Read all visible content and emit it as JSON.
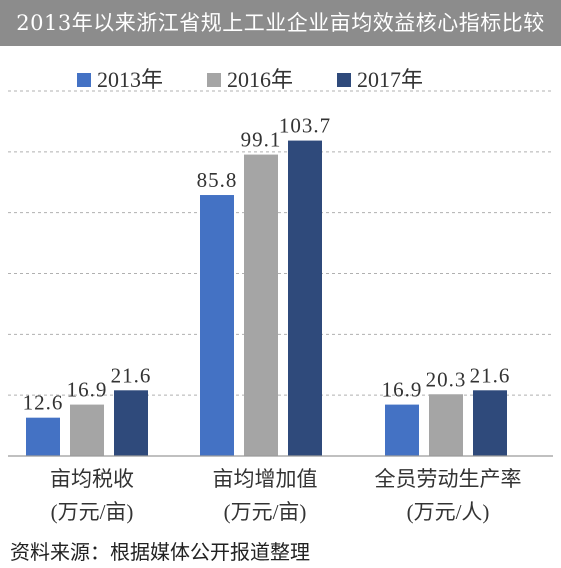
{
  "chart_data": {
    "type": "bar",
    "title": "2013年以来浙江省规上工业企业亩均效益核心指标比较",
    "categories": [
      [
        "亩均税收",
        "(万元/亩)"
      ],
      [
        "亩均增加值",
        "(万元/亩)"
      ],
      [
        "全员劳动生产率",
        "(万元/人)"
      ]
    ],
    "series": [
      {
        "name": "2013年",
        "values": [
          12.6,
          85.8,
          16.9
        ],
        "color": "#4472c4"
      },
      {
        "name": "2016年",
        "values": [
          16.9,
          99.1,
          20.3
        ],
        "color": "#a5a5a5"
      },
      {
        "name": "2017年",
        "values": [
          21.6,
          103.7,
          21.6
        ],
        "color": "#2f4a7b"
      }
    ],
    "value_labels": {
      "series_0": [
        "12.6",
        "85.8",
        "16.9"
      ],
      "series_1": [
        "16.9",
        "99.1",
        "20.3"
      ],
      "series_2": [
        "21.6",
        "103.7",
        "21.6"
      ]
    },
    "ylim": [
      0,
      120
    ],
    "grid": true,
    "legend": "top-center"
  },
  "source": "资料来源：根据媒体公开报道整理"
}
